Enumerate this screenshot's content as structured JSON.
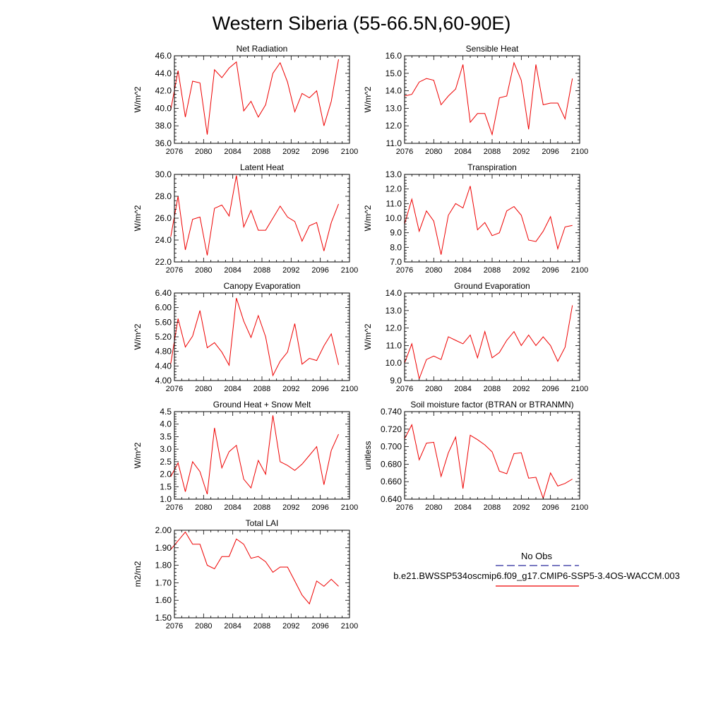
{
  "figure": {
    "title": "Western Siberia (55-66.5N,60-90E)"
  },
  "legend": {
    "obs_label": "No Obs",
    "obs_color": "#2b2b9e",
    "model_label": "b.e21.BWSSP534oscmip6.f09_g17.CMIP6-SSP5-3.4OS-WACCM.003",
    "model_color": "#ee0000"
  },
  "chart_data": [
    {
      "type": "line",
      "title": "Net Radiation",
      "ylabel": "W/m^2",
      "xlim": [
        2076,
        2100
      ],
      "xticks": [
        "2076",
        "2080",
        "2084",
        "2088",
        "2092",
        "2096",
        "2100"
      ],
      "ylim": [
        36.0,
        46.0
      ],
      "yticks": [
        "36.0",
        "38.0",
        "40.0",
        "42.0",
        "44.0",
        "46.0"
      ],
      "grid": false,
      "x": [
        2075.5,
        2076.5,
        2077.5,
        2078.5,
        2079.5,
        2080.5,
        2081.5,
        2082.5,
        2083.5,
        2084.5,
        2085.5,
        2086.5,
        2087.5,
        2088.5,
        2089.5,
        2090.5,
        2091.5,
        2092.5,
        2093.5,
        2094.5,
        2095.5,
        2096.5,
        2097.5,
        2098.5
      ],
      "series": [
        {
          "values": [
            39.8,
            44.3,
            39.0,
            43.1,
            42.9,
            37.0,
            44.4,
            43.5,
            44.6,
            45.3,
            39.7,
            40.8,
            39.0,
            40.4,
            44.0,
            45.2,
            43.0,
            39.6,
            41.7,
            41.2,
            42.0,
            38.0,
            40.8,
            45.6
          ]
        }
      ]
    },
    {
      "type": "line",
      "title": "Sensible Heat",
      "ylabel": "W/m^2",
      "xlim": [
        2076,
        2100
      ],
      "xticks": [
        "2076",
        "2080",
        "2084",
        "2088",
        "2092",
        "2096",
        "2100"
      ],
      "ylim": [
        11.0,
        16.0
      ],
      "yticks": [
        "11.0",
        "12.0",
        "13.0",
        "14.0",
        "15.0",
        "16.0"
      ],
      "grid": false,
      "x": [
        2076.0,
        2077.0,
        2078.0,
        2079.0,
        2080.0,
        2081.0,
        2082.0,
        2083.0,
        2084.0,
        2085.0,
        2086.0,
        2087.0,
        2088.0,
        2089.0,
        2090.0,
        2091.0,
        2092.0,
        2093.0,
        2094.0,
        2095.0,
        2096.0,
        2097.0,
        2098.0,
        2099.0
      ],
      "series": [
        {
          "values": [
            13.7,
            13.8,
            14.5,
            14.7,
            14.6,
            13.2,
            13.7,
            14.1,
            15.5,
            12.2,
            12.7,
            12.7,
            11.5,
            13.6,
            13.7,
            15.6,
            14.6,
            11.8,
            15.5,
            13.2,
            13.3,
            13.3,
            12.4,
            14.7
          ]
        }
      ]
    },
    {
      "type": "line",
      "title": "Latent Heat",
      "ylabel": "W/m^2",
      "xlim": [
        2076,
        2100
      ],
      "xticks": [
        "2076",
        "2080",
        "2084",
        "2088",
        "2092",
        "2096",
        "2100"
      ],
      "ylim": [
        22.0,
        30.0
      ],
      "yticks": [
        "22.0",
        "24.0",
        "26.0",
        "28.0",
        "30.0"
      ],
      "grid": false,
      "x": [
        2075.5,
        2076.5,
        2077.5,
        2078.5,
        2079.5,
        2080.5,
        2081.5,
        2082.5,
        2083.5,
        2084.5,
        2085.5,
        2086.5,
        2087.5,
        2088.5,
        2089.5,
        2090.5,
        2091.5,
        2092.5,
        2093.5,
        2094.5,
        2095.5,
        2096.5,
        2097.5,
        2098.5
      ],
      "series": [
        {
          "values": [
            24.3,
            28.0,
            23.1,
            25.9,
            26.1,
            22.6,
            26.9,
            27.2,
            26.2,
            29.9,
            25.2,
            26.7,
            24.9,
            24.9,
            26.0,
            27.1,
            26.1,
            25.7,
            23.9,
            25.3,
            25.6,
            23.0,
            25.6,
            27.3
          ]
        }
      ]
    },
    {
      "type": "line",
      "title": "Transpiration",
      "ylabel": "W/m^2",
      "xlim": [
        2076,
        2100
      ],
      "xticks": [
        "2076",
        "2080",
        "2084",
        "2088",
        "2092",
        "2096",
        "2100"
      ],
      "ylim": [
        7.0,
        13.0
      ],
      "yticks": [
        "7.0",
        "8.0",
        "9.0",
        "10.0",
        "11.0",
        "12.0",
        "13.0"
      ],
      "grid": false,
      "x": [
        2076.0,
        2077.0,
        2078.0,
        2079.0,
        2080.0,
        2081.0,
        2082.0,
        2083.0,
        2084.0,
        2085.0,
        2086.0,
        2087.0,
        2088.0,
        2089.0,
        2090.0,
        2091.0,
        2092.0,
        2093.0,
        2094.0,
        2095.0,
        2096.0,
        2097.0,
        2098.0,
        2099.0
      ],
      "series": [
        {
          "values": [
            9.6,
            11.3,
            9.1,
            10.5,
            9.8,
            7.5,
            10.2,
            11.0,
            10.7,
            12.2,
            9.2,
            9.7,
            8.8,
            9.0,
            10.5,
            10.8,
            10.2,
            8.5,
            8.4,
            9.1,
            10.1,
            7.9,
            9.4,
            9.5
          ]
        }
      ]
    },
    {
      "type": "line",
      "title": "Canopy Evaporation",
      "ylabel": "W/m^2",
      "xlim": [
        2076,
        2100
      ],
      "xticks": [
        "2076",
        "2080",
        "2084",
        "2088",
        "2092",
        "2096",
        "2100"
      ],
      "ylim": [
        4.0,
        6.4
      ],
      "yticks": [
        "4.00",
        "4.40",
        "4.80",
        "5.20",
        "5.60",
        "6.00",
        "6.40"
      ],
      "grid": false,
      "x": [
        2075.5,
        2076.5,
        2077.5,
        2078.5,
        2079.5,
        2080.5,
        2081.5,
        2082.5,
        2083.5,
        2084.5,
        2085.5,
        2086.5,
        2087.5,
        2088.5,
        2089.5,
        2090.5,
        2091.5,
        2092.5,
        2093.5,
        2094.5,
        2095.5,
        2096.5,
        2097.5,
        2098.5
      ],
      "series": [
        {
          "values": [
            4.46,
            5.7,
            4.92,
            5.22,
            5.92,
            4.9,
            5.04,
            4.78,
            4.42,
            6.26,
            5.63,
            5.18,
            5.78,
            5.2,
            4.14,
            4.53,
            4.78,
            5.56,
            4.45,
            4.61,
            4.55,
            4.95,
            5.28,
            4.43
          ]
        }
      ]
    },
    {
      "type": "line",
      "title": "Ground Evaporation",
      "ylabel": "W/m^2",
      "xlim": [
        2076,
        2100
      ],
      "xticks": [
        "2076",
        "2080",
        "2084",
        "2088",
        "2092",
        "2096",
        "2100"
      ],
      "ylim": [
        9.0,
        14.0
      ],
      "yticks": [
        "9.0",
        "10.0",
        "11.0",
        "12.0",
        "13.0",
        "14.0"
      ],
      "grid": false,
      "x": [
        2076.0,
        2077.0,
        2078.0,
        2079.0,
        2080.0,
        2081.0,
        2082.0,
        2083.0,
        2084.0,
        2085.0,
        2086.0,
        2087.0,
        2088.0,
        2089.0,
        2090.0,
        2091.0,
        2092.0,
        2093.0,
        2094.0,
        2095.0,
        2096.0,
        2097.0,
        2098.0,
        2099.0
      ],
      "series": [
        {
          "values": [
            10.0,
            11.1,
            9.1,
            10.2,
            10.4,
            10.2,
            11.5,
            11.3,
            11.1,
            11.6,
            10.3,
            11.8,
            10.3,
            10.6,
            11.3,
            11.8,
            11.0,
            11.6,
            11.0,
            11.5,
            11.0,
            10.1,
            10.9,
            13.3
          ]
        }
      ]
    },
    {
      "type": "line",
      "title": "Ground Heat + Snow Melt",
      "ylabel": "W/m^2",
      "xlim": [
        2076,
        2100
      ],
      "xticks": [
        "2076",
        "2080",
        "2084",
        "2088",
        "2092",
        "2096",
        "2100"
      ],
      "ylim": [
        1.0,
        4.5
      ],
      "yticks": [
        "1.0",
        "1.5",
        "2.0",
        "2.5",
        "3.0",
        "3.5",
        "4.0",
        "4.5"
      ],
      "grid": false,
      "x": [
        2075.5,
        2076.5,
        2077.5,
        2078.5,
        2079.5,
        2080.5,
        2081.5,
        2082.5,
        2083.5,
        2084.5,
        2085.5,
        2086.5,
        2087.5,
        2088.5,
        2089.5,
        2090.5,
        2091.5,
        2092.5,
        2093.5,
        2094.5,
        2095.5,
        2096.5,
        2097.5,
        2098.5
      ],
      "series": [
        {
          "values": [
            1.9,
            2.45,
            1.3,
            2.5,
            2.1,
            1.2,
            3.85,
            2.25,
            2.9,
            3.15,
            1.8,
            1.45,
            2.55,
            2.0,
            4.35,
            2.5,
            2.35,
            2.15,
            2.4,
            2.75,
            3.1,
            1.58,
            2.95,
            3.6
          ]
        }
      ]
    },
    {
      "type": "line",
      "title": "Soil moisture factor (BTRAN or BTRANMN)",
      "ylabel": "unitless",
      "xlim": [
        2076,
        2100
      ],
      "xticks": [
        "2076",
        "2080",
        "2084",
        "2088",
        "2092",
        "2096",
        "2100"
      ],
      "ylim": [
        0.64,
        0.74
      ],
      "yticks": [
        "0.640",
        "0.660",
        "0.680",
        "0.700",
        "0.720",
        "0.740"
      ],
      "grid": false,
      "x": [
        2076.0,
        2077.0,
        2078.0,
        2079.0,
        2080.0,
        2081.0,
        2082.0,
        2083.0,
        2084.0,
        2085.0,
        2086.0,
        2087.0,
        2088.0,
        2089.0,
        2090.0,
        2091.0,
        2092.0,
        2093.0,
        2094.0,
        2095.0,
        2096.0,
        2097.0,
        2098.0,
        2099.0
      ],
      "series": [
        {
          "values": [
            0.709,
            0.725,
            0.685,
            0.704,
            0.705,
            0.666,
            0.693,
            0.711,
            0.652,
            0.713,
            0.708,
            0.702,
            0.694,
            0.672,
            0.669,
            0.692,
            0.693,
            0.664,
            0.665,
            0.641,
            0.67,
            0.655,
            0.658,
            0.663
          ]
        }
      ]
    },
    {
      "type": "line",
      "title": "Total LAI",
      "ylabel": "m2/m2",
      "xlim": [
        2076,
        2100
      ],
      "xticks": [
        "2076",
        "2080",
        "2084",
        "2088",
        "2092",
        "2096",
        "2100"
      ],
      "ylim": [
        1.5,
        2.0
      ],
      "yticks": [
        "1.50",
        "1.60",
        "1.70",
        "1.80",
        "1.90",
        "2.00"
      ],
      "grid": false,
      "x": [
        2075.5,
        2076.5,
        2077.5,
        2078.5,
        2079.5,
        2080.5,
        2081.5,
        2082.5,
        2083.5,
        2084.5,
        2085.5,
        2086.5,
        2087.5,
        2088.5,
        2089.5,
        2090.5,
        2091.5,
        2092.5,
        2093.5,
        2094.5,
        2095.5,
        2096.5,
        2097.5,
        2098.5
      ],
      "series": [
        {
          "values": [
            1.89,
            1.94,
            1.99,
            1.92,
            1.92,
            1.8,
            1.78,
            1.85,
            1.85,
            1.95,
            1.92,
            1.84,
            1.85,
            1.82,
            1.76,
            1.79,
            1.79,
            1.71,
            1.63,
            1.58,
            1.71,
            1.68,
            1.72,
            1.68
          ]
        }
      ]
    }
  ]
}
